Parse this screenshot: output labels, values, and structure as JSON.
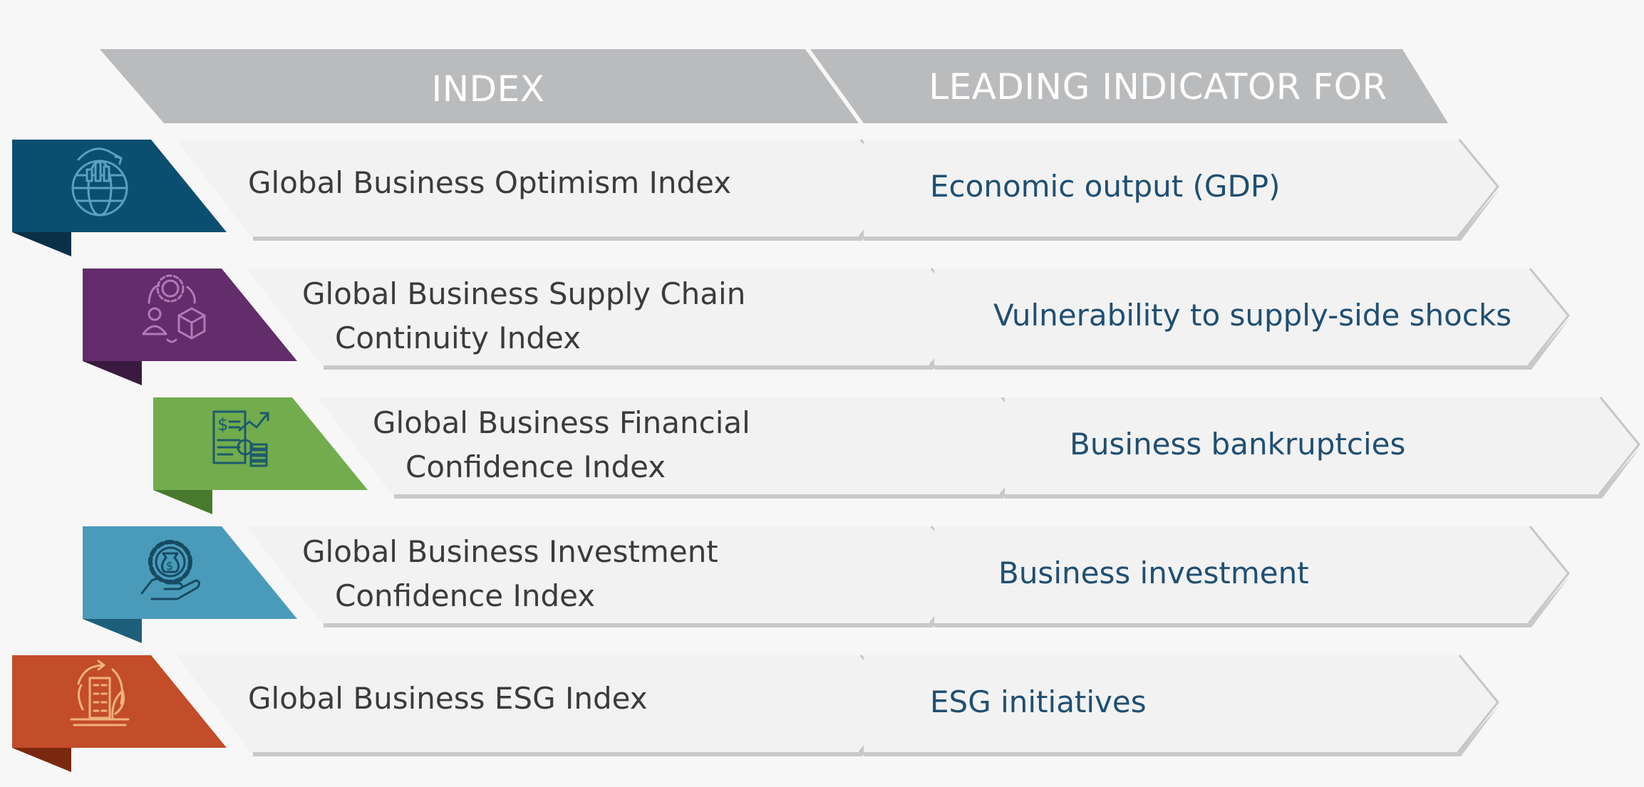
{
  "header": {
    "index_label": "INDEX",
    "leading_label": "LEADING INDICATOR FOR"
  },
  "rows": [
    {
      "index_lines": [
        "Global Business Optimism Index"
      ],
      "leading": "Economic output (GDP)",
      "icon": "globe-chart-icon",
      "color": "#0c4e6f",
      "fold_color": "#0a3047",
      "icon_color": "#5aa0c2"
    },
    {
      "index_lines": [
        "Global Business Supply Chain",
        "Continuity Index"
      ],
      "leading": "Vulnerability to supply-side shocks",
      "icon": "supply-chain-icon",
      "color": "#622d6a",
      "fold_color": "#3a1a40",
      "icon_color": "#b27ab8"
    },
    {
      "index_lines": [
        "Global Business Financial",
        "Confidence Index"
      ],
      "leading": "Business bankruptcies",
      "icon": "financial-report-icon",
      "color": "#72ac4d",
      "fold_color": "#477a2c",
      "icon_color": "#1f5a6c"
    },
    {
      "index_lines": [
        "Global Business Investment",
        "Confidence Index"
      ],
      "leading": "Business investment",
      "icon": "investment-gear-icon",
      "color": "#4a9bb9",
      "fold_color": "#1d5f7a",
      "icon_color": "#174a63"
    },
    {
      "index_lines": [
        "Global Business ESG Index"
      ],
      "leading": "ESG initiatives",
      "icon": "esg-building-icon",
      "color": "#c34c29",
      "fold_color": "#7a2810",
      "icon_color": "#f0b27d"
    }
  ]
}
